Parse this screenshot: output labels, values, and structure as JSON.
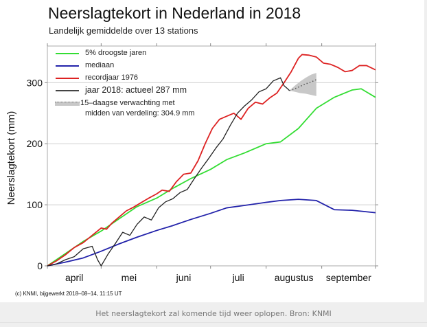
{
  "page": {
    "caption": "Het neerslagtekort zal komende tijd weer oplopen. Bron: KNMI",
    "credit": "(c) KNMI, bijgewerkt 2018–08–14, 11:15 UT"
  },
  "chart_data": {
    "type": "line",
    "title": "Neerslagtekort in Nederland in 2018",
    "subtitle": "Landelijk gemiddelde over 13 stations",
    "xlabel": "",
    "ylabel": "Neerslagtekort (mm)",
    "x_unit": "day of season (0 = 1 april, 183 = 30 september)",
    "xlim": [
      0,
      183
    ],
    "ylim": [
      0,
      360
    ],
    "yticks": [
      0,
      100,
      200,
      300
    ],
    "xticks": [
      {
        "day": 0,
        "label": ""
      },
      {
        "day": 30,
        "label": ""
      },
      {
        "day": 61,
        "label": ""
      },
      {
        "day": 91,
        "label": ""
      },
      {
        "day": 122,
        "label": ""
      },
      {
        "day": 153,
        "label": ""
      },
      {
        "day": 183,
        "label": ""
      }
    ],
    "month_labels": [
      {
        "day": 15,
        "label": "april"
      },
      {
        "day": 45.5,
        "label": "mei"
      },
      {
        "day": 76,
        "label": "juni"
      },
      {
        "day": 106.5,
        "label": "juli"
      },
      {
        "day": 137.5,
        "label": "augustus"
      },
      {
        "day": 168,
        "label": "september"
      }
    ],
    "grid": true,
    "legend_position": "top-left",
    "colors": {
      "droogste": "#33dd33",
      "mediaan": "#2222aa",
      "record": "#dd2222",
      "jaar2018": "#222222",
      "forecast_band": "#c8c8c8",
      "forecast_mid": "#555555"
    },
    "series": [
      {
        "name": "5% droogste jaren",
        "key": "droogste",
        "x": [
          0,
          10,
          20,
          30,
          40,
          50,
          61,
          70,
          80,
          91,
          100,
          110,
          122,
          130,
          140,
          150,
          160,
          170,
          175,
          183
        ],
        "y": [
          0,
          20,
          40,
          57,
          77,
          97,
          111,
          127,
          143,
          158,
          174,
          185,
          200,
          203,
          225,
          258,
          276,
          288,
          290,
          276
        ]
      },
      {
        "name": "mediaan",
        "key": "mediaan",
        "x": [
          0,
          10,
          20,
          30,
          40,
          50,
          61,
          70,
          80,
          91,
          100,
          110,
          122,
          130,
          140,
          150,
          160,
          170,
          183
        ],
        "y": [
          0,
          6,
          13,
          24,
          36,
          47,
          58,
          66,
          76,
          86,
          95,
          99,
          104,
          107,
          109,
          107,
          92,
          91,
          87
        ]
      },
      {
        "name": "recordjaar 1976",
        "key": "record",
        "x": [
          0,
          5,
          10,
          15,
          20,
          25,
          30,
          33,
          36,
          40,
          44,
          48,
          52,
          56,
          61,
          64,
          68,
          72,
          76,
          80,
          84,
          88,
          92,
          96,
          100,
          104,
          108,
          112,
          116,
          120,
          124,
          128,
          132,
          136,
          140,
          142,
          146,
          150,
          154,
          158,
          162,
          166,
          170,
          174,
          178,
          183
        ],
        "y": [
          0,
          8,
          18,
          30,
          38,
          50,
          62,
          60,
          70,
          80,
          90,
          96,
          103,
          110,
          118,
          124,
          122,
          138,
          150,
          152,
          172,
          200,
          225,
          240,
          245,
          250,
          240,
          258,
          268,
          265,
          275,
          283,
          300,
          318,
          340,
          346,
          345,
          342,
          332,
          330,
          325,
          318,
          320,
          328,
          328,
          321
        ]
      },
      {
        "name": "jaar 2018: actueel 287 mm",
        "key": "jaar2018",
        "x": [
          0,
          5,
          10,
          15,
          20,
          25,
          28,
          30,
          34,
          38,
          42,
          46,
          50,
          54,
          58,
          62,
          66,
          70,
          74,
          78,
          82,
          86,
          90,
          94,
          98,
          102,
          106,
          110,
          114,
          118,
          122,
          126,
          130,
          132,
          134,
          135
        ],
        "y": [
          0,
          3,
          10,
          15,
          28,
          32,
          10,
          0,
          20,
          37,
          55,
          50,
          68,
          80,
          75,
          95,
          105,
          110,
          120,
          125,
          143,
          160,
          176,
          193,
          208,
          230,
          250,
          262,
          272,
          285,
          290,
          303,
          308,
          295,
          290,
          287
        ]
      }
    ],
    "forecast": {
      "name": "15–daagse verwachting met midden van verdeling: 304.9 mm",
      "x": [
        135,
        138,
        141,
        144,
        147,
        150
      ],
      "mid": [
        287,
        290,
        294,
        298,
        301,
        304.9
      ],
      "upper": [
        287,
        295,
        302,
        308,
        313,
        316
      ],
      "lower": [
        287,
        285,
        283,
        282,
        280,
        278
      ]
    },
    "legend": [
      {
        "label": "5% droogste jaren",
        "key": "droogste",
        "style": "line"
      },
      {
        "label": "mediaan",
        "key": "mediaan",
        "style": "line"
      },
      {
        "label": "recordjaar 1976",
        "key": "record",
        "style": "line"
      },
      {
        "label": "jaar 2018: actueel 287 mm",
        "key": "jaar2018",
        "style": "line"
      },
      {
        "label": "15–daagse verwachting met",
        "label2": "midden van verdeling: 304.9 mm",
        "key": "forecast",
        "style": "band"
      }
    ]
  }
}
